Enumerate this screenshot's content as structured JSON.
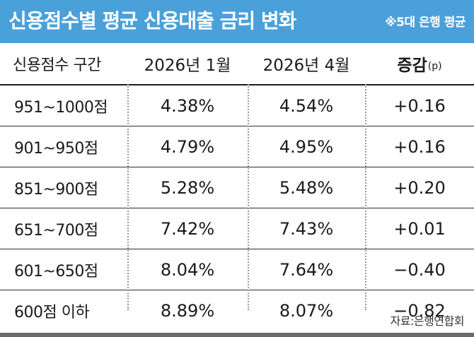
{
  "header": {
    "title": "신용점수별 평균 신용대출 금리 변화",
    "note": "※5대 은행 평균",
    "bg_color": "#4aa0d9"
  },
  "table": {
    "columns": [
      "신용점수 구간",
      "2026년 1월",
      "2026년 4월",
      "증감"
    ],
    "change_unit": "(p)",
    "rows": [
      [
        "951~1000점",
        "4.38%",
        "4.54%",
        "+0.16"
      ],
      [
        "901~950점",
        "4.79%",
        "4.95%",
        "+0.16"
      ],
      [
        "851~900점",
        "5.28%",
        "5.48%",
        "+0.20"
      ],
      [
        "651~700점",
        "7.42%",
        "7.43%",
        "+0.01"
      ],
      [
        "601~650점",
        "8.04%",
        "7.64%",
        "−0.40"
      ],
      [
        "600점 이하",
        "8.89%",
        "8.07%",
        "−0.82"
      ]
    ]
  },
  "source": "자료:은행연합회"
}
